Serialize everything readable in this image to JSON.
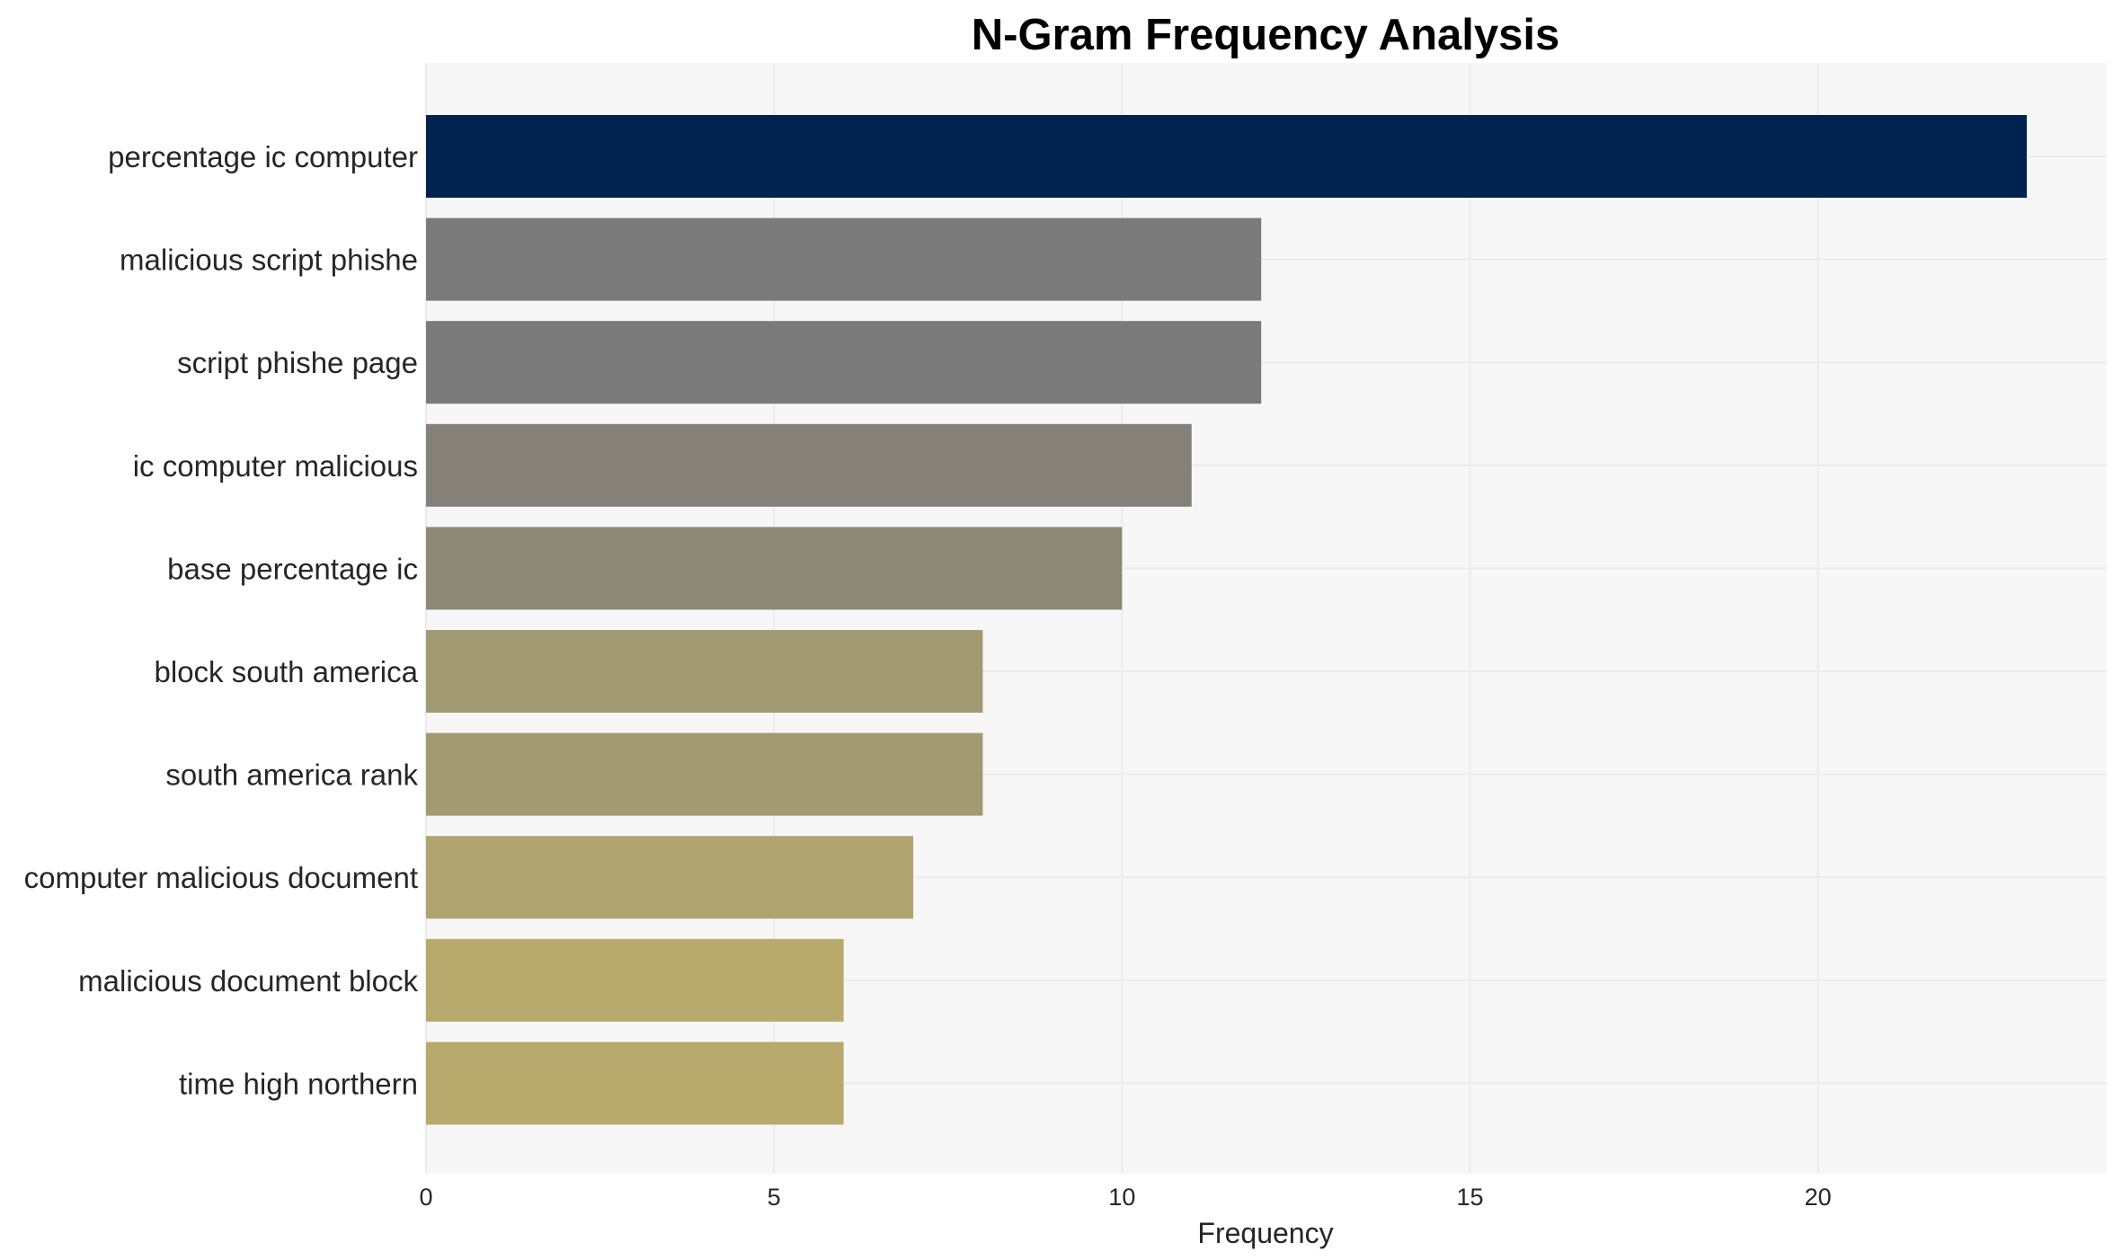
{
  "chart_data": {
    "type": "bar",
    "orientation": "horizontal",
    "title": "N-Gram Frequency Analysis",
    "xlabel": "Frequency",
    "ylabel": "",
    "categories": [
      "percentage ic computer",
      "malicious script phishe",
      "script phishe page",
      "ic computer malicious",
      "base percentage ic",
      "block south america",
      "south america rank",
      "computer malicious document",
      "malicious document block",
      "time high northern"
    ],
    "values": [
      23,
      12,
      12,
      11,
      10,
      8,
      8,
      7,
      6,
      6
    ],
    "colors": [
      "#00224e",
      "#7a7a7a",
      "#7a7a7a",
      "#858178",
      "#8c8875",
      "#a29a73",
      "#a29a73",
      "#afa370",
      "#b8aa6d",
      "#b8aa6d"
    ],
    "xlim": [
      0,
      24.15
    ],
    "xticks": [
      "0",
      "5",
      "10",
      "15",
      "20"
    ],
    "grid": true,
    "legend": "none",
    "plot_background": "#f7f7f7"
  }
}
